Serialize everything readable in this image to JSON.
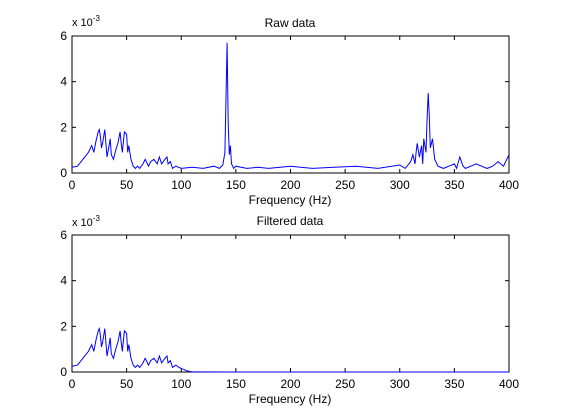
{
  "figure": {
    "background": "#ffffff"
  },
  "chart_data": [
    {
      "type": "line",
      "title": "Raw data",
      "xlabel": "Frequency (Hz)",
      "ylabel": "",
      "xlim": [
        0,
        400
      ],
      "ylim": [
        0,
        0.006
      ],
      "xticks": [
        0,
        50,
        100,
        150,
        200,
        250,
        300,
        350,
        400
      ],
      "yticks": [
        0,
        0.002,
        0.004,
        0.006
      ],
      "ytick_labels": [
        "0",
        "2",
        "4",
        "6"
      ],
      "y_exponent_label": "x 10",
      "y_exponent_power": "-3",
      "grid": false,
      "line_color": "#0000ff",
      "series": [
        {
          "x": [
            0,
            5,
            10,
            15,
            18,
            20,
            22,
            24,
            25,
            26,
            27,
            28,
            30,
            32,
            34,
            35,
            36,
            38,
            40,
            42,
            44,
            45,
            46,
            48,
            50,
            51,
            52,
            54,
            56,
            58,
            60,
            62,
            65,
            67,
            70,
            72,
            75,
            78,
            80,
            82,
            85,
            87,
            88,
            90,
            92,
            95,
            100,
            110,
            120,
            130,
            135,
            138,
            140,
            141,
            142,
            143,
            144,
            145,
            146,
            148,
            150,
            160,
            170,
            180,
            200,
            220,
            240,
            260,
            280,
            300,
            305,
            310,
            312,
            314,
            315,
            316,
            318,
            320,
            321,
            322,
            324,
            325,
            326,
            327,
            328,
            330,
            332,
            335,
            340,
            345,
            350,
            352,
            355,
            358,
            360,
            365,
            370,
            380,
            385,
            390,
            395,
            400
          ],
          "y": [
            0.00025,
            0.0003,
            0.0006,
            0.0009,
            0.0012,
            0.0009,
            0.0014,
            0.0018,
            0.0019,
            0.0016,
            0.0011,
            0.0013,
            0.0019,
            0.0007,
            0.0012,
            0.0015,
            0.0008,
            0.0006,
            0.001,
            0.0013,
            0.0018,
            0.0013,
            0.0009,
            0.0018,
            0.0017,
            0.0009,
            0.0012,
            0.0006,
            0.0003,
            0.0002,
            0.0003,
            0.0002,
            0.0004,
            0.0006,
            0.0003,
            0.0005,
            0.0006,
            0.0004,
            0.0007,
            0.0004,
            0.0006,
            0.0007,
            0.0004,
            0.0005,
            0.0002,
            0.0003,
            0.0002,
            0.00025,
            0.0002,
            0.0003,
            0.0002,
            0.00035,
            0.0009,
            0.0033,
            0.0057,
            0.0022,
            0.0008,
            0.0012,
            0.0004,
            0.0002,
            0.0003,
            0.0002,
            0.00025,
            0.0002,
            0.0003,
            0.0002,
            0.00025,
            0.0003,
            0.0002,
            0.00035,
            0.0002,
            0.0005,
            0.0008,
            0.0004,
            0.0009,
            0.0013,
            0.0007,
            0.0012,
            0.0004,
            0.0015,
            0.0009,
            0.0024,
            0.0035,
            0.0026,
            0.0011,
            0.0015,
            0.0006,
            0.0003,
            0.0002,
            0.0003,
            0.0004,
            0.0002,
            0.0007,
            0.0003,
            0.0002,
            0.0003,
            0.0004,
            0.0002,
            0.0003,
            0.0005,
            0.0003,
            0.0008
          ]
        }
      ]
    },
    {
      "type": "line",
      "title": "Filtered data",
      "xlabel": "Frequency (Hz)",
      "ylabel": "",
      "xlim": [
        0,
        400
      ],
      "ylim": [
        0,
        0.006
      ],
      "xticks": [
        0,
        50,
        100,
        150,
        200,
        250,
        300,
        350,
        400
      ],
      "yticks": [
        0,
        0.002,
        0.004,
        0.006
      ],
      "ytick_labels": [
        "0",
        "2",
        "4",
        "6"
      ],
      "y_exponent_label": "x 10",
      "y_exponent_power": "-3",
      "grid": false,
      "line_color": "#0000ff",
      "series": [
        {
          "x": [
            0,
            5,
            10,
            15,
            18,
            20,
            22,
            24,
            25,
            26,
            27,
            28,
            30,
            32,
            34,
            35,
            36,
            38,
            40,
            42,
            44,
            45,
            46,
            48,
            50,
            51,
            52,
            54,
            56,
            58,
            60,
            62,
            65,
            67,
            70,
            72,
            75,
            78,
            80,
            82,
            85,
            87,
            88,
            90,
            92,
            95,
            98,
            100,
            103,
            105,
            108,
            110,
            120,
            150,
            200,
            250,
            300,
            350,
            400
          ],
          "y": [
            0.00025,
            0.0003,
            0.0006,
            0.0009,
            0.0012,
            0.0009,
            0.0014,
            0.0018,
            0.0019,
            0.0016,
            0.0011,
            0.0013,
            0.0019,
            0.0007,
            0.0012,
            0.0015,
            0.0008,
            0.0006,
            0.001,
            0.0013,
            0.0018,
            0.0013,
            0.0009,
            0.0018,
            0.0017,
            0.0009,
            0.0012,
            0.0006,
            0.0003,
            0.0002,
            0.0003,
            0.0002,
            0.0004,
            0.0006,
            0.0003,
            0.0005,
            0.0006,
            0.0004,
            0.0007,
            0.0004,
            0.0006,
            0.0007,
            0.0004,
            0.0005,
            0.0002,
            0.0003,
            0.0002,
            0.00015,
            0.0001,
            5e-05,
            2e-05,
            1e-05,
            5e-06,
            2e-06,
            2e-06,
            2e-06,
            2e-06,
            2e-06,
            2e-06
          ]
        }
      ]
    }
  ]
}
